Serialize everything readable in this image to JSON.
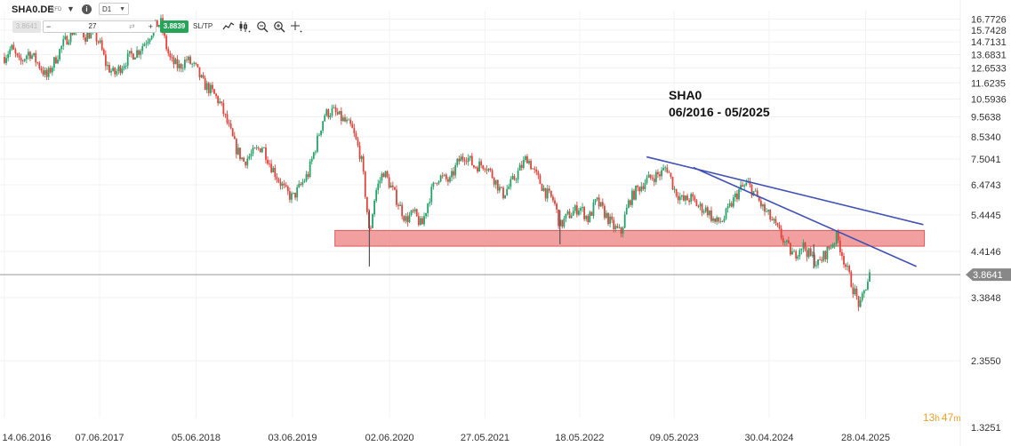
{
  "toolbar": {
    "symbol": "SHA0.DE",
    "instrument_type": "CFD",
    "timeframe": "D1",
    "sell_price": "3.8641",
    "quantity": "27",
    "buy_price": "3.8839",
    "sltp_label": "SL/TP",
    "tools": [
      "line-chart-icon",
      "candlestick-icon",
      "zoom-out-icon",
      "zoom-in-icon",
      "crosshair-icon"
    ]
  },
  "annotation": {
    "title": "SHA0",
    "period": "06/2016 - 05/2025"
  },
  "countdown": {
    "hours": "13",
    "h_unit": "h",
    "minutes": "47",
    "m_unit": "m"
  },
  "colors": {
    "bull": "#26a269",
    "bear": "#e0443c",
    "trendline": "#3f51b5",
    "support_zone": "#ef8e8e",
    "price_line": "#999999",
    "price_tag": "#888888",
    "countdown": "#f0a030"
  },
  "chart_data": {
    "type": "candlestick",
    "symbol": "SHA0.DE",
    "timeframe": "D1",
    "ylim": [
      1.7,
      17.6
    ],
    "y_scale": "log",
    "yticks": [
      "16.7726",
      "15.7428",
      "14.7131",
      "13.6831",
      "12.6533",
      "11.6235",
      "10.5936",
      "9.5638",
      "8.5340",
      "7.5041",
      "6.4743",
      "5.4445",
      "4.4146",
      "3.3848",
      "2.3550",
      "1.3251"
    ],
    "xticks": [
      "14.06.2016",
      "07.06.2017",
      "05.06.2018",
      "03.06.2019",
      "02.06.2020",
      "27.05.2021",
      "18.05.2022",
      "09.05.2023",
      "30.04.2024",
      "28.04.2025"
    ],
    "x_range": [
      "2016-06-14",
      "2025-05-13"
    ],
    "current_price": 3.8641,
    "current_price_label": "3.8641",
    "close_path": [
      [
        "2016-06-14",
        13.5
      ],
      [
        "2016-07-10",
        14.2
      ],
      [
        "2016-08-10",
        13.0
      ],
      [
        "2016-09-15",
        13.9
      ],
      [
        "2016-10-25",
        12.8
      ],
      [
        "2016-11-20",
        12.0
      ],
      [
        "2016-12-20",
        13.2
      ],
      [
        "2017-01-20",
        14.5
      ],
      [
        "2017-02-20",
        15.5
      ],
      [
        "2017-03-15",
        16.0
      ],
      [
        "2017-04-15",
        15.2
      ],
      [
        "2017-05-10",
        15.6
      ],
      [
        "2017-06-07",
        14.6
      ],
      [
        "2017-07-01",
        12.9
      ],
      [
        "2017-08-01",
        12.2
      ],
      [
        "2017-09-01",
        12.9
      ],
      [
        "2017-10-01",
        13.6
      ],
      [
        "2017-11-01",
        14.0
      ],
      [
        "2017-12-01",
        14.9
      ],
      [
        "2018-01-05",
        16.2
      ],
      [
        "2018-01-25",
        16.4
      ],
      [
        "2018-02-10",
        14.5
      ],
      [
        "2018-03-01",
        13.2
      ],
      [
        "2018-04-01",
        12.7
      ],
      [
        "2018-05-01",
        13.3
      ],
      [
        "2018-06-05",
        12.6
      ],
      [
        "2018-07-01",
        11.6
      ],
      [
        "2018-08-01",
        11.1
      ],
      [
        "2018-09-01",
        10.4
      ],
      [
        "2018-10-01",
        9.2
      ],
      [
        "2018-11-01",
        8.0
      ],
      [
        "2018-12-01",
        7.4
      ],
      [
        "2019-01-10",
        7.8
      ],
      [
        "2019-02-10",
        8.1
      ],
      [
        "2019-03-10",
        7.3
      ],
      [
        "2019-04-10",
        6.7
      ],
      [
        "2019-05-10",
        6.2
      ],
      [
        "2019-06-03",
        6.0
      ],
      [
        "2019-07-01",
        6.4
      ],
      [
        "2019-08-01",
        6.9
      ],
      [
        "2019-09-01",
        8.2
      ],
      [
        "2019-10-01",
        9.7
      ],
      [
        "2019-11-01",
        9.9
      ],
      [
        "2019-12-01",
        9.5
      ],
      [
        "2020-01-10",
        9.0
      ],
      [
        "2020-02-15",
        7.6
      ],
      [
        "2020-03-18",
        4.8
      ],
      [
        "2020-04-10",
        6.2
      ],
      [
        "2020-05-10",
        7.0
      ],
      [
        "2020-06-02",
        6.5
      ],
      [
        "2020-07-01",
        5.9
      ],
      [
        "2020-08-01",
        5.3
      ],
      [
        "2020-09-01",
        5.5
      ],
      [
        "2020-10-01",
        5.1
      ],
      [
        "2020-11-01",
        6.1
      ],
      [
        "2020-12-01",
        6.8
      ],
      [
        "2021-01-15",
        6.6
      ],
      [
        "2021-02-15",
        7.4
      ],
      [
        "2021-03-15",
        7.7
      ],
      [
        "2021-04-15",
        7.2
      ],
      [
        "2021-05-27",
        7.3
      ],
      [
        "2021-07-01",
        6.7
      ],
      [
        "2021-08-01",
        6.1
      ],
      [
        "2021-09-01",
        6.5
      ],
      [
        "2021-10-01",
        7.0
      ],
      [
        "2021-11-01",
        7.6
      ],
      [
        "2021-12-01",
        6.9
      ],
      [
        "2022-01-10",
        6.2
      ],
      [
        "2022-02-10",
        5.9
      ],
      [
        "2022-03-05",
        5.1
      ],
      [
        "2022-04-01",
        5.4
      ],
      [
        "2022-05-18",
        5.7
      ],
      [
        "2022-06-20",
        5.3
      ],
      [
        "2022-07-20",
        5.9
      ],
      [
        "2022-08-20",
        5.5
      ],
      [
        "2022-09-20",
        5.1
      ],
      [
        "2022-10-20",
        4.9
      ],
      [
        "2022-11-20",
        5.9
      ],
      [
        "2022-12-20",
        6.3
      ],
      [
        "2023-01-20",
        6.6
      ],
      [
        "2023-02-20",
        6.8
      ],
      [
        "2023-03-20",
        6.9
      ],
      [
        "2023-04-10",
        7.2
      ],
      [
        "2023-05-09",
        6.3
      ],
      [
        "2023-06-10",
        5.9
      ],
      [
        "2023-07-10",
        6.0
      ],
      [
        "2023-08-10",
        5.7
      ],
      [
        "2023-09-10",
        5.6
      ],
      [
        "2023-10-10",
        5.2
      ],
      [
        "2023-11-10",
        5.3
      ],
      [
        "2023-12-10",
        5.8
      ],
      [
        "2024-01-10",
        6.3
      ],
      [
        "2024-02-10",
        6.5
      ],
      [
        "2024-03-10",
        6.1
      ],
      [
        "2024-04-10",
        5.6
      ],
      [
        "2024-04-30",
        5.4
      ],
      [
        "2024-06-01",
        5.0
      ],
      [
        "2024-07-01",
        4.6
      ],
      [
        "2024-08-01",
        4.3
      ],
      [
        "2024-09-01",
        4.6
      ],
      [
        "2024-10-01",
        4.3
      ],
      [
        "2024-11-01",
        4.1
      ],
      [
        "2024-12-01",
        4.4
      ],
      [
        "2025-01-10",
        4.8
      ],
      [
        "2025-02-10",
        4.1
      ],
      [
        "2025-03-10",
        3.6
      ],
      [
        "2025-04-07",
        3.2
      ],
      [
        "2025-04-28",
        3.6
      ],
      [
        "2025-05-13",
        3.86
      ]
    ],
    "support_zone": {
      "from": "2020-02-01",
      "to": "2025-05-31",
      "low": 4.55,
      "high": 4.98
    },
    "trendlines": [
      {
        "start": [
          "2023-01-25",
          7.6
        ],
        "end": [
          "2025-05-31",
          5.15
        ]
      },
      {
        "start": [
          "2023-07-20",
          7.15
        ],
        "end": [
          "2025-05-05",
          4.05
        ]
      }
    ]
  }
}
